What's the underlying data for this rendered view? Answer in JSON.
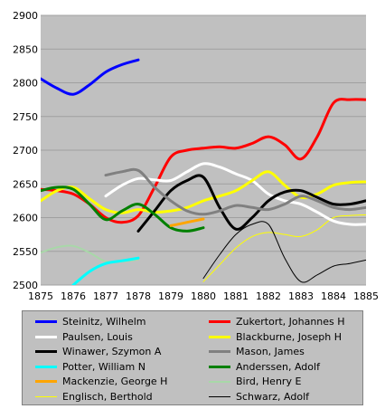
{
  "chart_data": {
    "type": "line",
    "title": "",
    "xlabel": "",
    "ylabel": "",
    "xlim": [
      1875,
      1885
    ],
    "ylim": [
      2500,
      2900
    ],
    "x_ticks": [
      "1875",
      "1876",
      "1877",
      "1878",
      "1879",
      "1880",
      "1881",
      "1882",
      "1883",
      "1884",
      "1885"
    ],
    "y_ticks": [
      "2500",
      "2550",
      "2600",
      "2650",
      "2700",
      "2750",
      "2800",
      "2850",
      "2900"
    ],
    "grid": "horizontal",
    "legend_position": "bottom",
    "series": [
      {
        "name": "Steinitz, Wilhelm",
        "color": "#0000ff",
        "width": 3,
        "x": [
          1875,
          1875.5,
          1876,
          1876.5,
          1877,
          1877.5,
          1878
        ],
        "y": [
          2806,
          2792,
          2783,
          2797,
          2816,
          2827,
          2834
        ]
      },
      {
        "name": "Zukertort, Johannes H",
        "color": "#ff0000",
        "width": 3,
        "x": [
          1875,
          1875.5,
          1876,
          1876.5,
          1877,
          1877.5,
          1878,
          1878.5,
          1879,
          1879.5,
          1880,
          1880.5,
          1881,
          1881.5,
          1882,
          1882.5,
          1883,
          1883.5,
          1884,
          1884.5,
          1885
        ],
        "y": [
          2642,
          2640,
          2635,
          2620,
          2600,
          2593,
          2603,
          2645,
          2690,
          2700,
          2703,
          2705,
          2703,
          2710,
          2720,
          2708,
          2687,
          2720,
          2770,
          2775,
          2775
        ]
      },
      {
        "name": "Paulsen, Louis",
        "color": "#ffffff",
        "width": 3,
        "x": [
          1877,
          1877.5,
          1878,
          1878.5,
          1879,
          1879.5,
          1880,
          1880.5,
          1881,
          1881.5,
          1882,
          1882.5,
          1883,
          1883.5,
          1884,
          1884.5,
          1885
        ],
        "y": [
          2632,
          2648,
          2658,
          2656,
          2655,
          2668,
          2680,
          2675,
          2665,
          2655,
          2635,
          2625,
          2620,
          2608,
          2595,
          2590,
          2590
        ]
      },
      {
        "name": "Blackburne, Joseph H",
        "color": "#ffff00",
        "width": 3,
        "x": [
          1875,
          1875.5,
          1876,
          1876.5,
          1877,
          1877.5,
          1878,
          1878.5,
          1879,
          1879.5,
          1880,
          1880.5,
          1881,
          1881.5,
          1882,
          1882.5,
          1883,
          1883.5,
          1884,
          1884.5,
          1885
        ],
        "y": [
          2625,
          2640,
          2645,
          2628,
          2612,
          2607,
          2612,
          2608,
          2610,
          2615,
          2625,
          2632,
          2640,
          2655,
          2668,
          2648,
          2630,
          2635,
          2648,
          2652,
          2653
        ]
      },
      {
        "name": "Winawer, Szymon A",
        "color": "#000000",
        "width": 3,
        "x": [
          1878,
          1878.5,
          1879,
          1879.5,
          1880,
          1880.5,
          1881,
          1881.5,
          1882,
          1882.5,
          1883,
          1883.5,
          1884,
          1884.5,
          1885
        ],
        "y": [
          2580,
          2610,
          2640,
          2655,
          2660,
          2615,
          2583,
          2600,
          2625,
          2638,
          2640,
          2630,
          2620,
          2620,
          2625
        ]
      },
      {
        "name": "Mason, James",
        "color": "#808080",
        "width": 3,
        "x": [
          1877,
          1877.5,
          1878,
          1878.5,
          1879,
          1879.5,
          1880,
          1880.5,
          1881,
          1881.5,
          1882,
          1882.5,
          1883,
          1883.5,
          1884,
          1884.5,
          1885
        ],
        "y": [
          2663,
          2668,
          2670,
          2645,
          2625,
          2610,
          2605,
          2610,
          2618,
          2615,
          2612,
          2620,
          2632,
          2625,
          2615,
          2612,
          2615
        ]
      },
      {
        "name": "Potter, William N",
        "color": "#00ffff",
        "width": 3,
        "x": [
          1876,
          1876.5,
          1877,
          1877.5,
          1878
        ],
        "y": [
          2500,
          2520,
          2532,
          2536,
          2540
        ]
      },
      {
        "name": "Anderssen, Adolf",
        "color": "#008000",
        "width": 3,
        "x": [
          1875,
          1875.5,
          1876,
          1876.5,
          1877,
          1877.5,
          1878,
          1878.5,
          1879,
          1879.5,
          1880
        ],
        "y": [
          2640,
          2645,
          2642,
          2620,
          2597,
          2610,
          2620,
          2605,
          2585,
          2580,
          2585
        ]
      },
      {
        "name": "Mackenzie, George H",
        "color": "#ffa500",
        "width": 3,
        "x": [
          1879,
          1879.5,
          1880
        ],
        "y": [
          2588,
          2593,
          2598
        ]
      },
      {
        "name": "Bird, Henry E",
        "color": "#a8d8a8",
        "width": 2,
        "x": [
          1875,
          1875.5,
          1876,
          1876.5,
          1877,
          1877.5,
          1878
        ],
        "y": [
          2548,
          2556,
          2558,
          2548,
          2535,
          2535,
          2538
        ]
      },
      {
        "name": "Englisch, Berthold",
        "color": "#ffff00",
        "width": 1,
        "x": [
          1880,
          1880.5,
          1881,
          1881.5,
          1882,
          1882.5,
          1883,
          1883.5,
          1884,
          1884.5,
          1885
        ],
        "y": [
          2505,
          2530,
          2555,
          2572,
          2578,
          2575,
          2572,
          2582,
          2600,
          2603,
          2604
        ]
      },
      {
        "name": "Schwarz, Adolf",
        "color": "#000000",
        "width": 1,
        "x": [
          1880,
          1880.5,
          1881,
          1881.5,
          1882,
          1882.5,
          1883,
          1883.5,
          1884,
          1884.5,
          1885
        ],
        "y": [
          2510,
          2545,
          2575,
          2590,
          2590,
          2540,
          2505,
          2515,
          2528,
          2532,
          2537
        ]
      }
    ]
  }
}
